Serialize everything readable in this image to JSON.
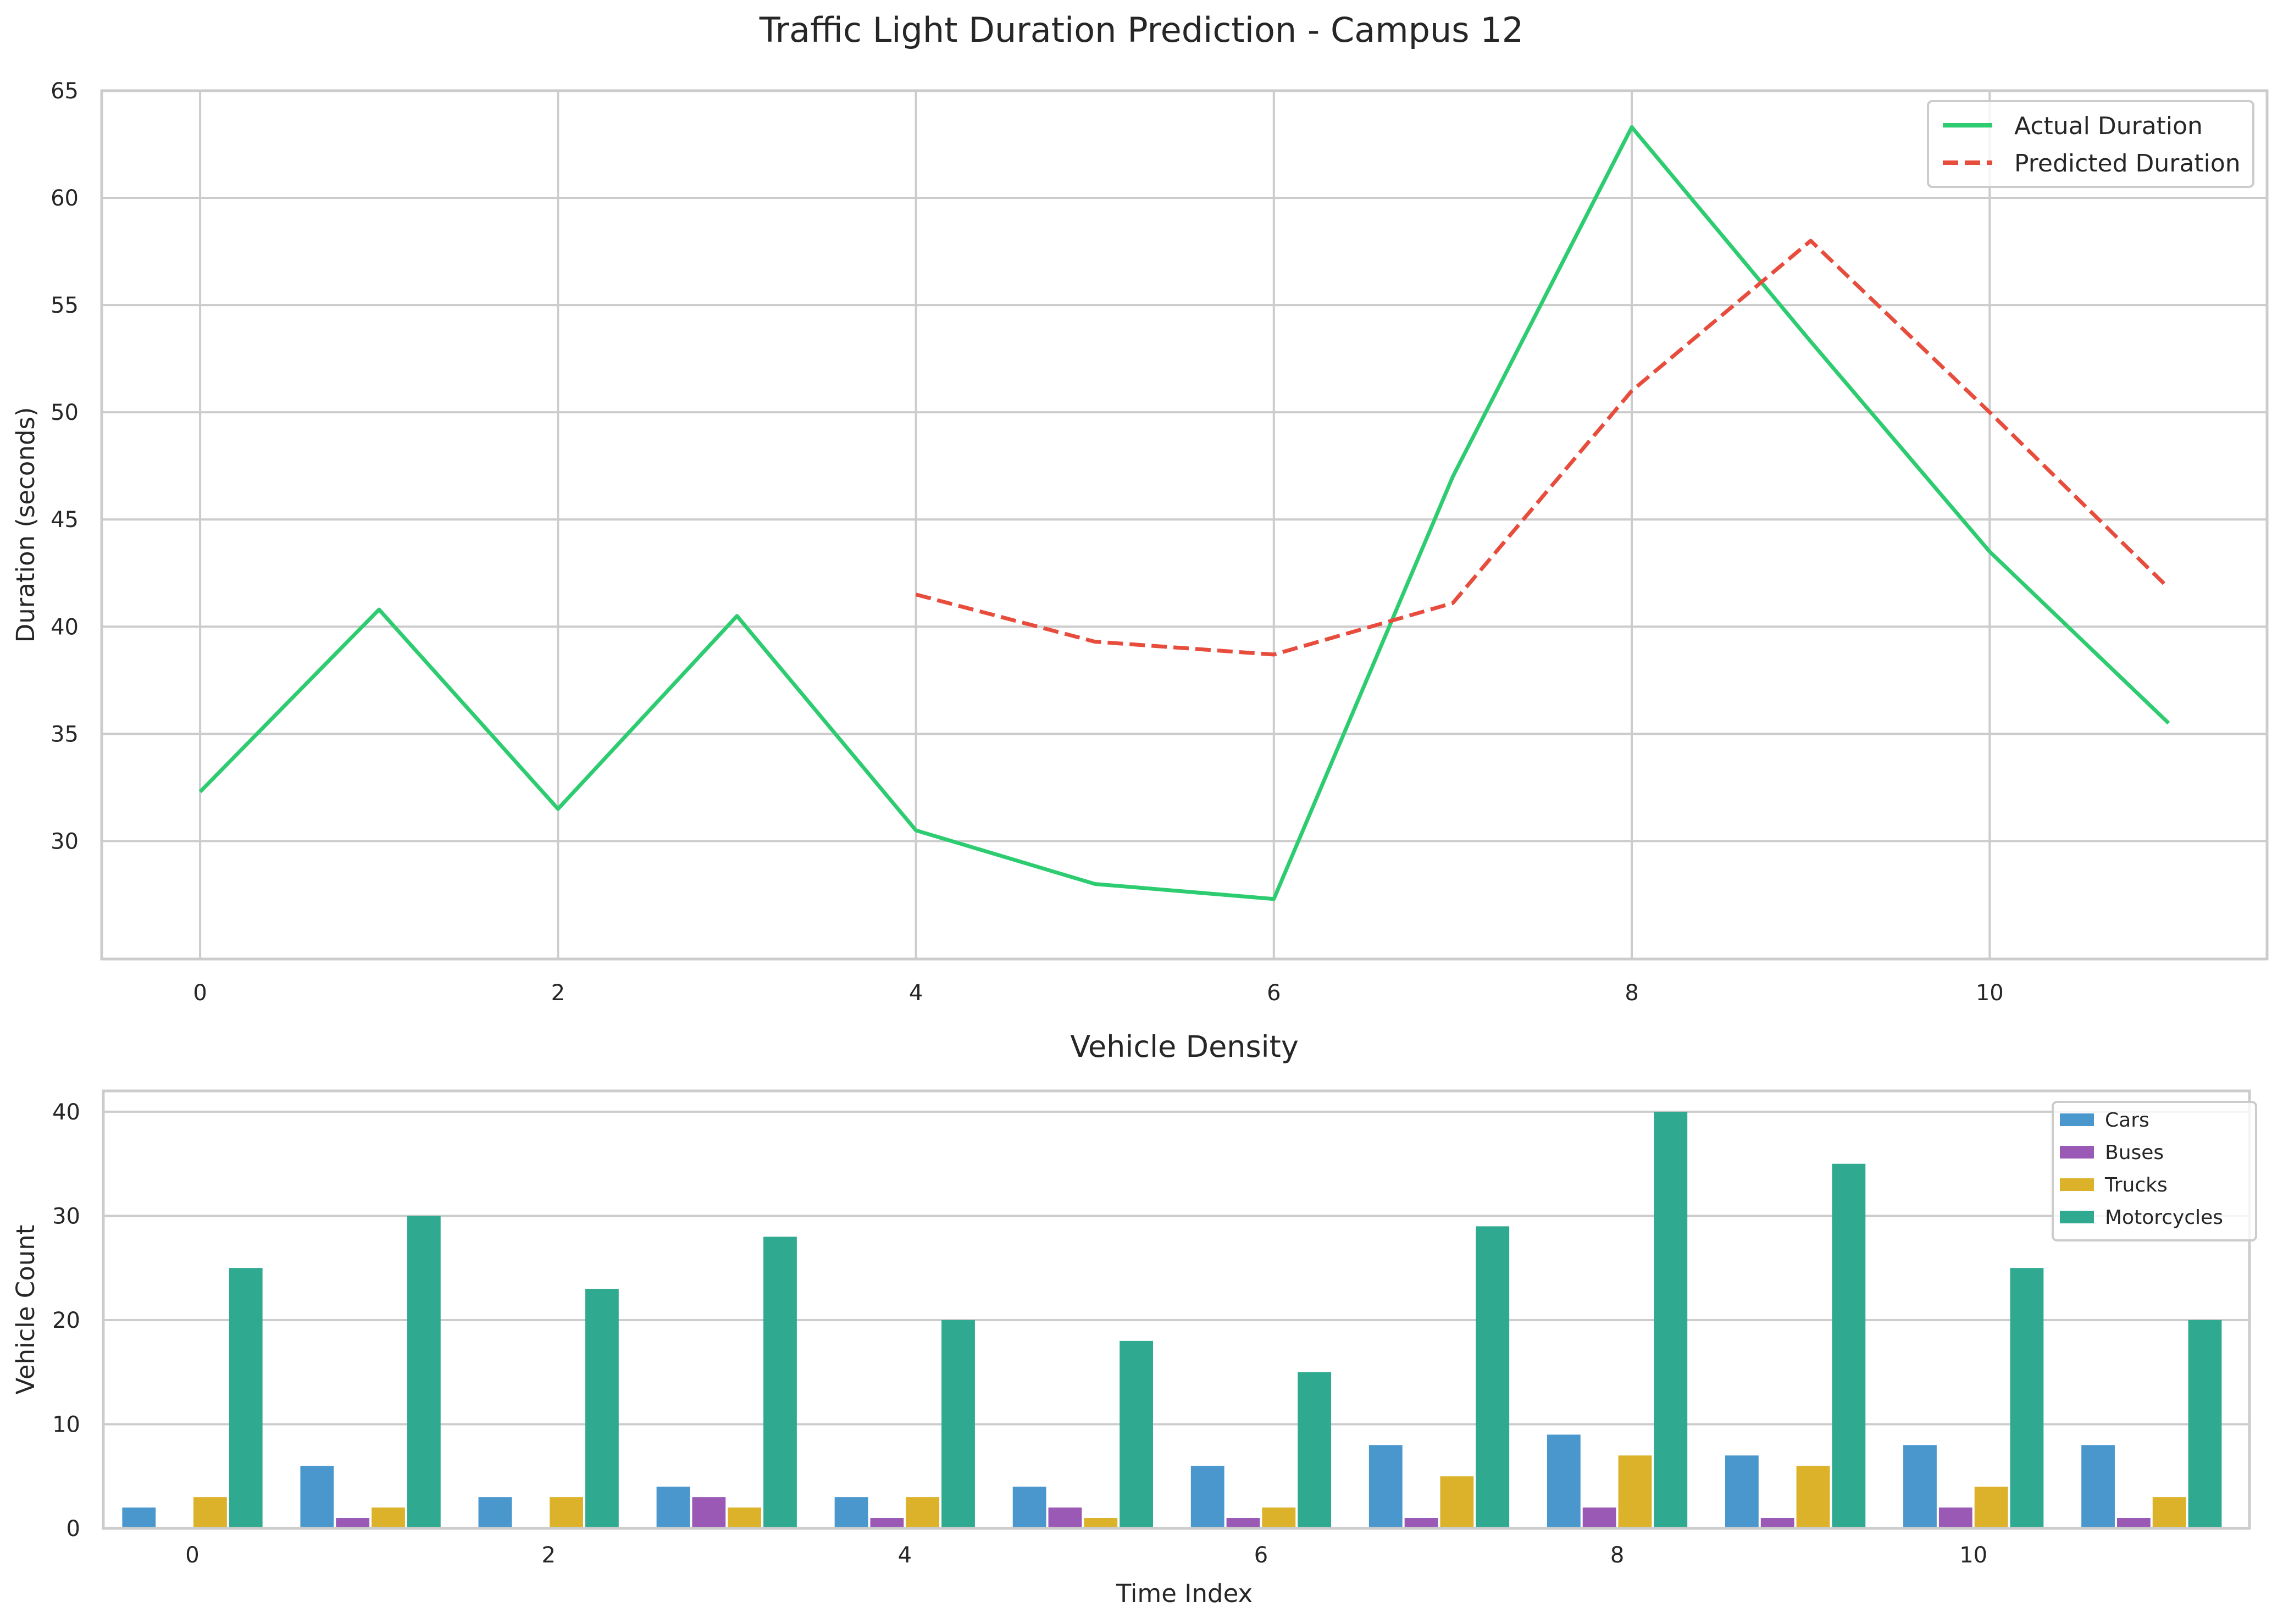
{
  "figure": {
    "suptitle": "Traffic Light Duration Prediction - Campus 12"
  },
  "colors": {
    "actual": "#2ecc71",
    "predicted": "#e74c3c",
    "cars": "#4a97cd",
    "buses": "#9b59b6",
    "trucks": "#dbb22a",
    "motorcycles": "#2fa990",
    "grid": "#cccccc",
    "spine": "#cccccc"
  },
  "chart_data": [
    {
      "type": "line",
      "title": "",
      "xlabel": "",
      "ylabel": "Duration (seconds)",
      "xlim": [
        -0.55,
        11.55
      ],
      "ylim": [
        24.5,
        65
      ],
      "xticks": [
        0,
        2,
        4,
        6,
        8,
        10
      ],
      "yticks": [
        30,
        35,
        40,
        45,
        50,
        55,
        60,
        65
      ],
      "grid": true,
      "legend_position": "upper right",
      "series": [
        {
          "name": "Actual Duration",
          "style": "solid",
          "color_key": "actual",
          "x": [
            0,
            1,
            2,
            3,
            4,
            5,
            6,
            7,
            8,
            9,
            10,
            11
          ],
          "y": [
            32.3,
            40.8,
            31.5,
            40.5,
            30.5,
            28.0,
            27.3,
            47.0,
            63.3,
            53.3,
            43.5,
            35.5
          ]
        },
        {
          "name": "Predicted Duration",
          "style": "dashed",
          "color_key": "predicted",
          "x": [
            4,
            5,
            6,
            7,
            8,
            9,
            10,
            11
          ],
          "y": [
            41.5,
            39.3,
            38.7,
            41.1,
            51.0,
            58.0,
            50.0,
            41.8
          ]
        }
      ]
    },
    {
      "type": "bar",
      "title": "Vehicle Density",
      "xlabel": "Time Index",
      "ylabel": "Vehicle Count",
      "xlim": [
        -0.5,
        11.55
      ],
      "ylim": [
        0,
        42
      ],
      "xticks": [
        0,
        2,
        4,
        6,
        8,
        10
      ],
      "yticks": [
        0,
        10,
        20,
        30,
        40
      ],
      "grid": true,
      "legend_position": "upper right",
      "categories": [
        0,
        1,
        2,
        3,
        4,
        5,
        6,
        7,
        8,
        9,
        10,
        11
      ],
      "series": [
        {
          "name": "Cars",
          "color_key": "cars",
          "values": [
            2,
            6,
            3,
            4,
            3,
            4,
            6,
            8,
            9,
            7,
            8,
            8
          ]
        },
        {
          "name": "Buses",
          "color_key": "buses",
          "values": [
            0,
            1,
            0,
            3,
            1,
            2,
            1,
            1,
            2,
            1,
            2,
            1
          ]
        },
        {
          "name": "Trucks",
          "color_key": "trucks",
          "values": [
            3,
            2,
            3,
            2,
            3,
            1,
            2,
            5,
            7,
            6,
            4,
            3
          ]
        },
        {
          "name": "Motorcycles",
          "color_key": "motorcycles",
          "values": [
            25,
            30,
            23,
            28,
            20,
            18,
            15,
            29,
            40,
            35,
            25,
            20
          ]
        }
      ]
    }
  ]
}
